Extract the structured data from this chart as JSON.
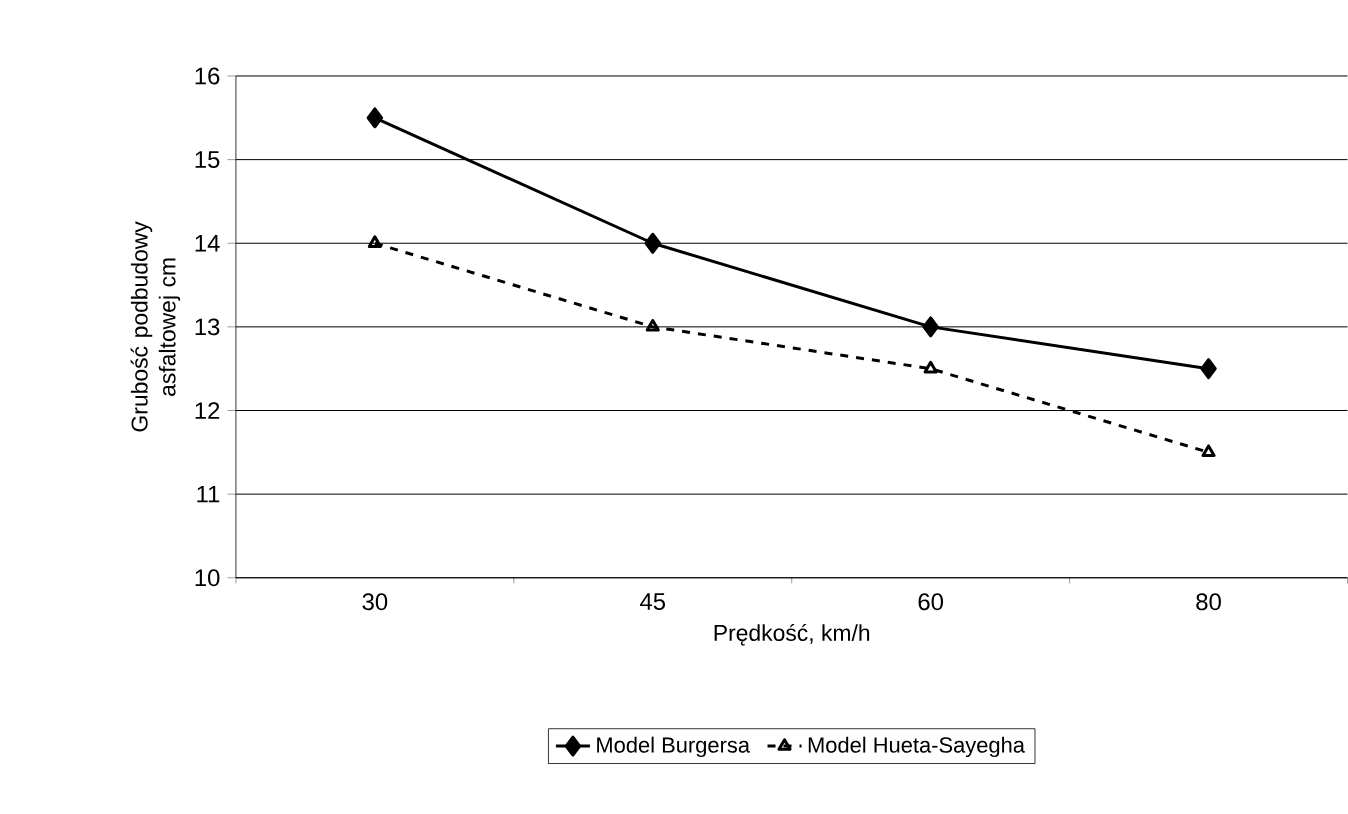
{
  "chart_data": {
    "type": "line",
    "xlabel": "Prędkość, km/h",
    "ylabel": "Grubość podbudowy asfaltowej cm",
    "categories": [
      "30",
      "45",
      "60",
      "80"
    ],
    "series": [
      {
        "name": "Model Burgersa",
        "color": "#000000",
        "marker": "diamond",
        "line_style": "solid",
        "values": [
          15.5,
          14,
          13,
          12.5
        ]
      },
      {
        "name": "Model Hueta-Sayegha",
        "color": "#000000",
        "marker": "triangle",
        "line_style": "dashed",
        "values": [
          14,
          13,
          12.5,
          11.5
        ]
      }
    ],
    "ylim": [
      10,
      16
    ],
    "yticks": [
      10,
      11,
      12,
      13,
      14,
      15,
      16
    ],
    "grid": "y",
    "legend": "bottom"
  }
}
